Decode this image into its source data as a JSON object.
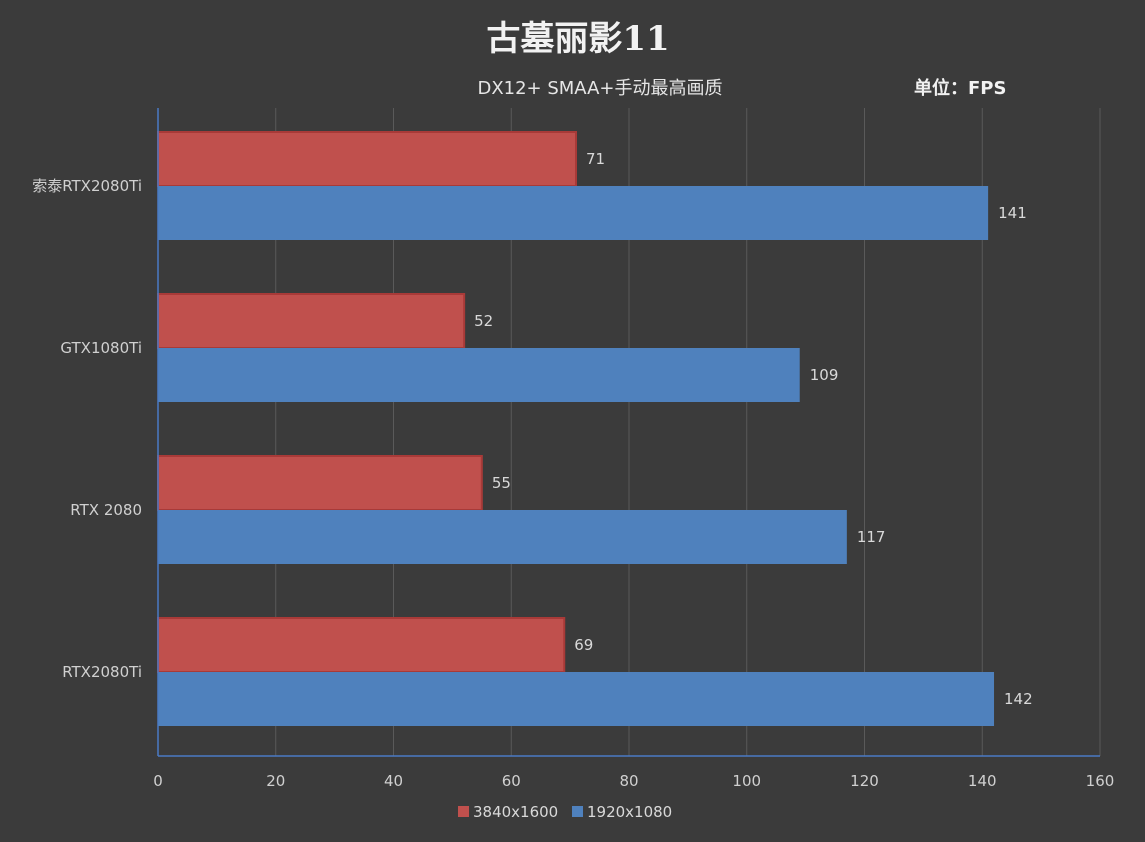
{
  "chart_data": {
    "type": "bar",
    "orientation": "horizontal",
    "title": "古墓丽影11",
    "subtitle": "DX12+ SMAA+手动最高画质",
    "unit_label": "单位：",
    "unit_value": "FPS",
    "categories": [
      "索泰RTX2080Ti",
      "GTX1080Ti",
      "RTX 2080",
      "RTX2080Ti"
    ],
    "series": [
      {
        "name": "3840x1600",
        "color": "#c0504d",
        "values": [
          71,
          52,
          55,
          69
        ]
      },
      {
        "name": "1920x1080",
        "color": "#4f81bd",
        "values": [
          141,
          109,
          117,
          142
        ]
      }
    ],
    "xlim": [
      0,
      160
    ],
    "x_ticks": [
      "0",
      "20",
      "40",
      "60",
      "80",
      "100",
      "120",
      "140",
      "160"
    ],
    "grid": true,
    "legend_position": "bottom-center"
  }
}
